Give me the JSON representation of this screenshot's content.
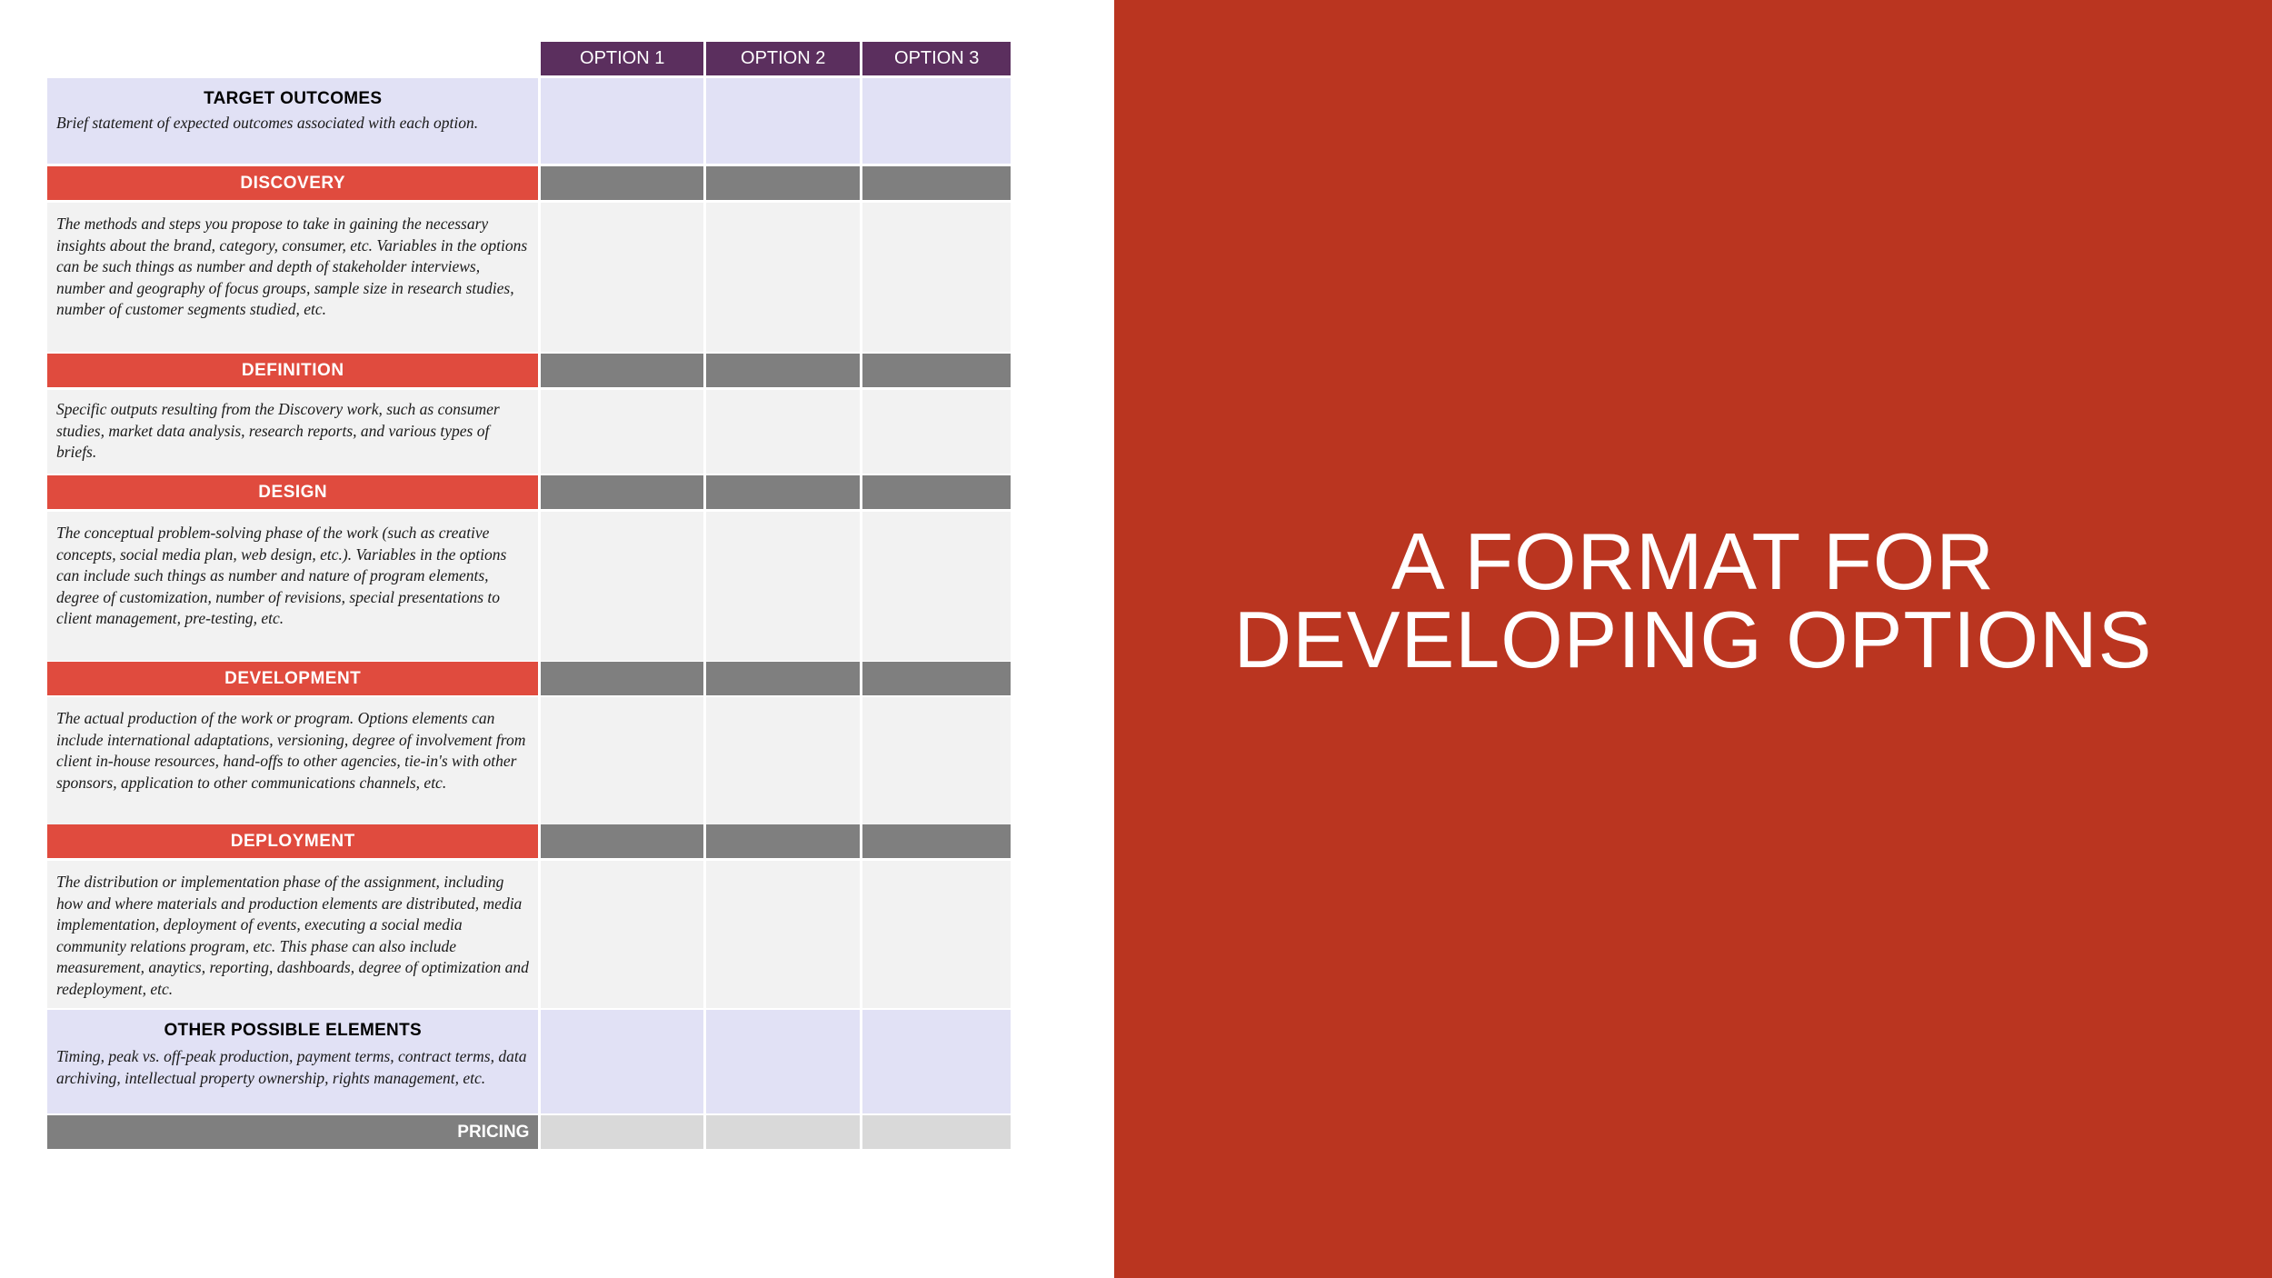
{
  "slide": {
    "title_lines": [
      "A FORMAT FOR",
      "DEVELOPING OPTIONS"
    ]
  },
  "table": {
    "headers": [
      "OPTION 1",
      "OPTION 2",
      "OPTION 3"
    ],
    "target_outcomes": {
      "heading": "TARGET OUTCOMES",
      "desc": "Brief statement of expected outcomes associated with each option."
    },
    "discovery": {
      "label": "DISCOVERY",
      "desc": "The methods and steps you propose to take in gaining the necessary insights about the brand, category, consumer, etc. Variables in the options can be such things as number and depth of stakeholder interviews, number and geography of focus groups, sample size in research studies, number of customer segments studied, etc."
    },
    "definition": {
      "label": "DEFINITION",
      "desc": "Specific outputs resulting from the Discovery work, such as consumer studies, market data analysis, research reports, and various types of briefs."
    },
    "design": {
      "label": "DESIGN",
      "desc": "The conceptual problem-solving phase of the work (such as creative concepts, social media plan, web design, etc.). Variables in the options can include such things as number and nature of program elements, degree of customization, number of revisions, special presentations to client management, pre-testing, etc."
    },
    "development": {
      "label": "DEVELOPMENT",
      "desc": "The actual production of the work or program.  Options elements can include international adaptations, versioning, degree of involvement from client in-house resources, hand-offs to other agencies, tie-in's with other sponsors, application to other communications channels, etc."
    },
    "deployment": {
      "label": "DEPLOYMENT",
      "desc": "The distribution or implementation phase of the assignment, including how and where materials and production elements are distributed, media implementation, deployment of events, executing a social media community relations program, etc. This phase can also include measurement, anaytics, reporting, dashboards, degree of optimization and redeployment, etc."
    },
    "other_elements": {
      "heading": "OTHER POSSIBLE ELEMENTS",
      "desc": "Timing, peak vs. off-peak production, payment terms, contract terms, data archiving, intellectual property ownership, rights management, etc."
    },
    "pricing": {
      "label": "PRICING"
    }
  },
  "colors": {
    "header_purple": "#5b2f5e",
    "section_red": "#e04b3e",
    "section_grey": "#7f7f7f",
    "lavender": "#e1e1f5",
    "light_grey": "#f2f2f2",
    "panel_red": "#ba3520"
  }
}
